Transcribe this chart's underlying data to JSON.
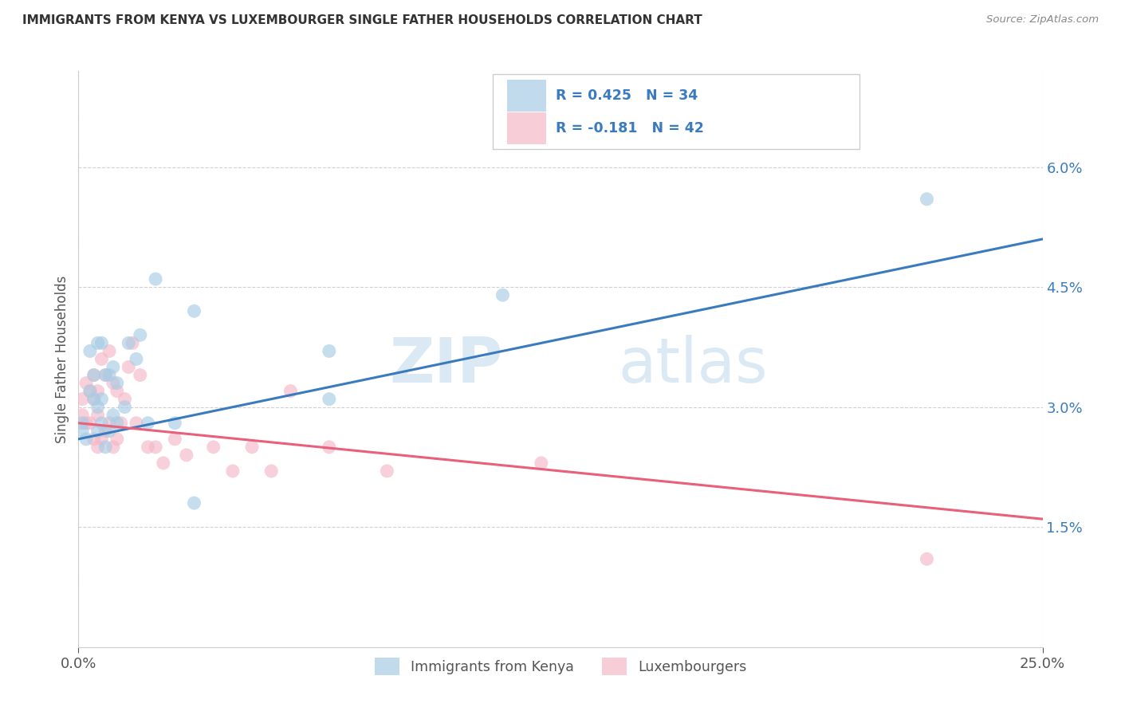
{
  "title": "IMMIGRANTS FROM KENYA VS LUXEMBOURGER SINGLE FATHER HOUSEHOLDS CORRELATION CHART",
  "source": "Source: ZipAtlas.com",
  "xlim": [
    0.0,
    0.25
  ],
  "ylim": [
    0.0,
    0.072
  ],
  "ylabel": "Single Father Households",
  "legend1_r": "R = 0.425",
  "legend1_n": "N = 34",
  "legend2_r": "R = -0.181",
  "legend2_n": "N = 42",
  "legend_label1": "Immigrants from Kenya",
  "legend_label2": "Luxembourgers",
  "blue_color": "#a8cce4",
  "pink_color": "#f4b8c8",
  "blue_line_color": "#3a7bbf",
  "pink_line_color": "#e8607a",
  "r_text_color": "#3a7bbf",
  "watermark_zip": "ZIP",
  "watermark_atlas": "atlas",
  "blue_scatter_x": [
    0.001,
    0.001,
    0.002,
    0.003,
    0.003,
    0.004,
    0.004,
    0.005,
    0.005,
    0.005,
    0.006,
    0.006,
    0.006,
    0.007,
    0.007,
    0.008,
    0.008,
    0.009,
    0.009,
    0.01,
    0.01,
    0.012,
    0.013,
    0.015,
    0.016,
    0.018,
    0.025,
    0.03,
    0.065,
    0.065,
    0.11,
    0.22,
    0.03,
    0.02
  ],
  "blue_scatter_y": [
    0.027,
    0.028,
    0.026,
    0.032,
    0.037,
    0.031,
    0.034,
    0.027,
    0.03,
    0.038,
    0.028,
    0.031,
    0.038,
    0.025,
    0.034,
    0.027,
    0.034,
    0.029,
    0.035,
    0.028,
    0.033,
    0.03,
    0.038,
    0.036,
    0.039,
    0.028,
    0.028,
    0.018,
    0.031,
    0.037,
    0.044,
    0.056,
    0.042,
    0.046
  ],
  "pink_scatter_x": [
    0.001,
    0.001,
    0.002,
    0.002,
    0.003,
    0.003,
    0.004,
    0.004,
    0.004,
    0.005,
    0.005,
    0.005,
    0.006,
    0.006,
    0.007,
    0.007,
    0.008,
    0.008,
    0.009,
    0.009,
    0.01,
    0.01,
    0.011,
    0.012,
    0.013,
    0.014,
    0.015,
    0.016,
    0.018,
    0.02,
    0.022,
    0.025,
    0.028,
    0.035,
    0.04,
    0.045,
    0.05,
    0.055,
    0.065,
    0.08,
    0.12,
    0.22
  ],
  "pink_scatter_y": [
    0.029,
    0.031,
    0.028,
    0.033,
    0.028,
    0.032,
    0.026,
    0.031,
    0.034,
    0.025,
    0.029,
    0.032,
    0.026,
    0.036,
    0.027,
    0.034,
    0.028,
    0.037,
    0.025,
    0.033,
    0.026,
    0.032,
    0.028,
    0.031,
    0.035,
    0.038,
    0.028,
    0.034,
    0.025,
    0.025,
    0.023,
    0.026,
    0.024,
    0.025,
    0.022,
    0.025,
    0.022,
    0.032,
    0.025,
    0.022,
    0.023,
    0.011
  ],
  "blue_line_y_start": 0.026,
  "blue_line_y_end": 0.051,
  "pink_line_y_start": 0.028,
  "pink_line_y_end": 0.016,
  "yticks": [
    0.015,
    0.03,
    0.045,
    0.06
  ],
  "ytick_labels": [
    "1.5%",
    "3.0%",
    "4.5%",
    "6.0%"
  ],
  "xticks": [
    0.0,
    0.25
  ],
  "xtick_labels": [
    "0.0%",
    "25.0%"
  ]
}
